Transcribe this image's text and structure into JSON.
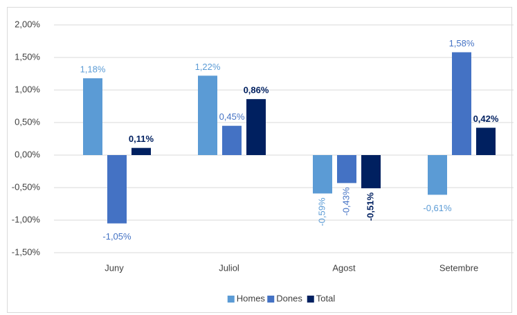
{
  "chart_data": {
    "type": "bar",
    "categories": [
      "Juny",
      "Juliol",
      "Agost",
      "Setembre"
    ],
    "series": [
      {
        "name": "Homes",
        "color": "#5b9bd5",
        "values": [
          1.18,
          1.22,
          -0.59,
          -0.61
        ],
        "value_labels": [
          "1,18%",
          "1,22%",
          "-0,59%",
          "-0,61%"
        ]
      },
      {
        "name": "Dones",
        "color": "#4472c4",
        "values": [
          -1.05,
          0.45,
          -0.43,
          1.58
        ],
        "value_labels": [
          "-1,05%",
          "0,45%",
          "-0,43%",
          "1,58%"
        ]
      },
      {
        "name": "Total",
        "color": "#002060",
        "values": [
          0.11,
          0.86,
          -0.51,
          0.42
        ],
        "value_labels": [
          "0,11%",
          "0,86%",
          "-0,51%",
          "0,42%"
        ]
      }
    ],
    "ylim": [
      -1.5,
      2
    ],
    "yticks": [
      {
        "value": -1.5,
        "label": "-1,50%"
      },
      {
        "value": -1,
        "label": "-1,00%"
      },
      {
        "value": -0.5,
        "label": "-0,50%"
      },
      {
        "value": 0,
        "label": "0,00%"
      },
      {
        "value": 0.5,
        "label": "0,50%"
      },
      {
        "value": 1,
        "label": "1,00%"
      },
      {
        "value": 1.5,
        "label": "1,50%"
      },
      {
        "value": 2,
        "label": "2,00%"
      }
    ],
    "grid": true,
    "legend": "bottom"
  }
}
